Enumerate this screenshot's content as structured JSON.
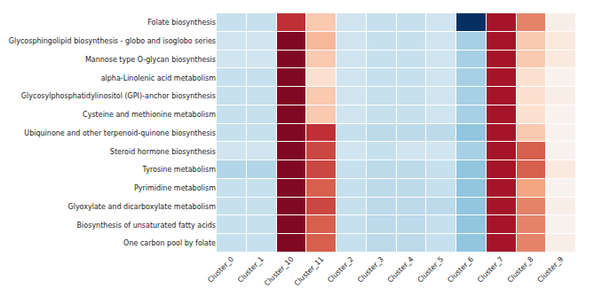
{
  "chart_data": {
    "type": "heatmap",
    "x": [
      "Cluster_0",
      "Cluster_1",
      "Cluster_10",
      "Cluster_11",
      "Cluster_2",
      "Cluster_3",
      "Cluster_4",
      "Cluster_5",
      "Cluster_6",
      "Cluster_7",
      "Cluster_8",
      "Cluster_9"
    ],
    "y": [
      "Folate biosynthesis",
      "Glycosphingolipid biosynthesis - globo and isoglobo series",
      "Mannose type O-glycan biosynthesis",
      "alpha-Linolenic acid metabolism",
      "Glycosylphosphatidylinositol (GPI)-anchor biosynthesis",
      "Cysteine and methionine metabolism",
      "Ubiquinone and other terpenoid-quinone biosynthesis",
      "Steroid hormone biosynthesis",
      "Tyrosine metabolism",
      "Pyrimidine metabolism",
      "Glyoxylate and dicarboxylate metabolism",
      "Biosynthesis of unsaturated fatty acids",
      "One carbon pool by folate"
    ],
    "values": [
      [
        -0.7,
        -0.7,
        2.2,
        0.8,
        -0.6,
        -0.7,
        -0.7,
        -0.6,
        -3.0,
        2.5,
        1.5,
        0.2
      ],
      [
        -0.6,
        -0.6,
        2.8,
        1.0,
        -0.6,
        -0.7,
        -0.7,
        -0.6,
        -1.0,
        2.5,
        0.8,
        0.3
      ],
      [
        -0.6,
        -0.6,
        2.8,
        0.8,
        -0.6,
        -0.7,
        -0.7,
        -0.6,
        -1.0,
        2.5,
        0.8,
        0.3
      ],
      [
        -0.7,
        -0.7,
        2.8,
        0.5,
        -0.6,
        -0.7,
        -0.7,
        -0.6,
        -1.0,
        2.5,
        0.5,
        0.1
      ],
      [
        -0.7,
        -0.7,
        2.8,
        0.8,
        -0.6,
        -0.7,
        -0.7,
        -0.6,
        -1.0,
        2.5,
        0.5,
        0.2
      ],
      [
        -0.7,
        -0.7,
        2.8,
        0.8,
        -0.6,
        -0.7,
        -0.7,
        -0.6,
        -1.0,
        2.5,
        0.5,
        0.1
      ],
      [
        -0.7,
        -0.7,
        2.8,
        2.2,
        -0.7,
        -0.8,
        -0.8,
        -0.8,
        -1.2,
        2.5,
        0.8,
        0.1
      ],
      [
        -0.6,
        -0.6,
        2.8,
        2.0,
        -0.6,
        -0.7,
        -0.6,
        -0.6,
        -1.0,
        2.5,
        1.8,
        0.1
      ],
      [
        -0.9,
        -0.9,
        2.8,
        2.0,
        -0.7,
        -0.8,
        -0.8,
        -0.7,
        -1.2,
        2.5,
        1.8,
        0.3
      ],
      [
        -0.7,
        -0.7,
        2.8,
        1.8,
        -0.7,
        -0.8,
        -0.8,
        -0.7,
        -1.2,
        2.5,
        1.2,
        0.1
      ],
      [
        -0.7,
        -0.7,
        2.8,
        2.0,
        -0.7,
        -0.8,
        -0.8,
        -0.8,
        -1.2,
        2.5,
        1.5,
        0.2
      ],
      [
        -0.7,
        -0.7,
        2.8,
        1.8,
        -0.7,
        -0.8,
        -0.8,
        -0.7,
        -1.2,
        2.5,
        1.5,
        0.1
      ],
      [
        -0.7,
        -0.7,
        2.8,
        1.8,
        -0.7,
        -0.8,
        -0.8,
        -0.7,
        -1.2,
        2.5,
        1.5,
        0.2
      ]
    ],
    "zlim": [
      -3.0,
      3.0
    ],
    "colorscale": [
      "#053061",
      "#2166ac",
      "#4393c3",
      "#92c5de",
      "#d1e5f0",
      "#f7f7f7",
      "#fddbc7",
      "#f4a582",
      "#d6604d",
      "#b2182b",
      "#67001f"
    ],
    "grid": false
  }
}
